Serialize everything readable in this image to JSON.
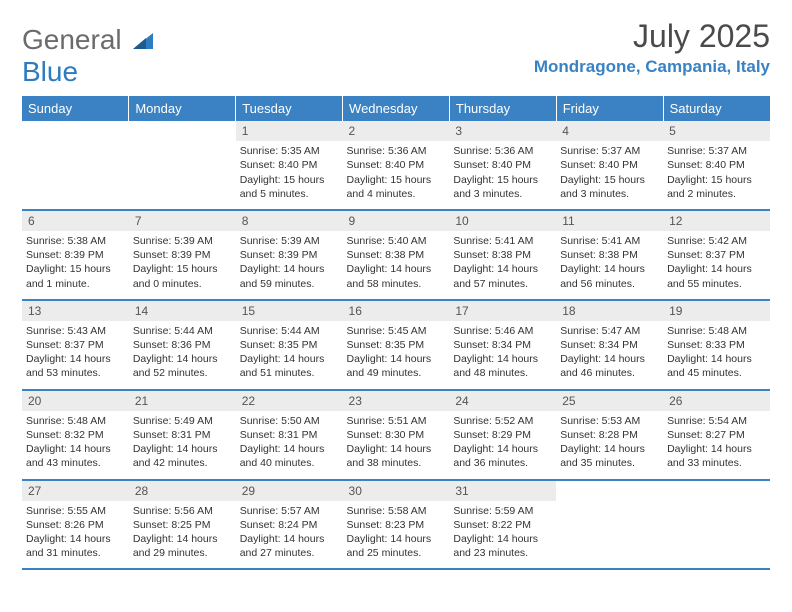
{
  "logo": {
    "line1": "General",
    "line2": "Blue"
  },
  "title": "July 2025",
  "subtitle": "Mondragone, Campania, Italy",
  "colors": {
    "header_bg": "#3a82c4",
    "header_text": "#ffffff",
    "daynum_bg": "#ececec",
    "row_border": "#3a82c4",
    "title_color": "#4a4a4a",
    "subtitle_color": "#3a82c4",
    "body_text": "#333333"
  },
  "weekdays": [
    "Sunday",
    "Monday",
    "Tuesday",
    "Wednesday",
    "Thursday",
    "Friday",
    "Saturday"
  ],
  "weeks": [
    [
      null,
      null,
      {
        "n": "1",
        "sr": "5:35 AM",
        "ss": "8:40 PM",
        "dl": "15 hours and 5 minutes."
      },
      {
        "n": "2",
        "sr": "5:36 AM",
        "ss": "8:40 PM",
        "dl": "15 hours and 4 minutes."
      },
      {
        "n": "3",
        "sr": "5:36 AM",
        "ss": "8:40 PM",
        "dl": "15 hours and 3 minutes."
      },
      {
        "n": "4",
        "sr": "5:37 AM",
        "ss": "8:40 PM",
        "dl": "15 hours and 3 minutes."
      },
      {
        "n": "5",
        "sr": "5:37 AM",
        "ss": "8:40 PM",
        "dl": "15 hours and 2 minutes."
      }
    ],
    [
      {
        "n": "6",
        "sr": "5:38 AM",
        "ss": "8:39 PM",
        "dl": "15 hours and 1 minute."
      },
      {
        "n": "7",
        "sr": "5:39 AM",
        "ss": "8:39 PM",
        "dl": "15 hours and 0 minutes."
      },
      {
        "n": "8",
        "sr": "5:39 AM",
        "ss": "8:39 PM",
        "dl": "14 hours and 59 minutes."
      },
      {
        "n": "9",
        "sr": "5:40 AM",
        "ss": "8:38 PM",
        "dl": "14 hours and 58 minutes."
      },
      {
        "n": "10",
        "sr": "5:41 AM",
        "ss": "8:38 PM",
        "dl": "14 hours and 57 minutes."
      },
      {
        "n": "11",
        "sr": "5:41 AM",
        "ss": "8:38 PM",
        "dl": "14 hours and 56 minutes."
      },
      {
        "n": "12",
        "sr": "5:42 AM",
        "ss": "8:37 PM",
        "dl": "14 hours and 55 minutes."
      }
    ],
    [
      {
        "n": "13",
        "sr": "5:43 AM",
        "ss": "8:37 PM",
        "dl": "14 hours and 53 minutes."
      },
      {
        "n": "14",
        "sr": "5:44 AM",
        "ss": "8:36 PM",
        "dl": "14 hours and 52 minutes."
      },
      {
        "n": "15",
        "sr": "5:44 AM",
        "ss": "8:35 PM",
        "dl": "14 hours and 51 minutes."
      },
      {
        "n": "16",
        "sr": "5:45 AM",
        "ss": "8:35 PM",
        "dl": "14 hours and 49 minutes."
      },
      {
        "n": "17",
        "sr": "5:46 AM",
        "ss": "8:34 PM",
        "dl": "14 hours and 48 minutes."
      },
      {
        "n": "18",
        "sr": "5:47 AM",
        "ss": "8:34 PM",
        "dl": "14 hours and 46 minutes."
      },
      {
        "n": "19",
        "sr": "5:48 AM",
        "ss": "8:33 PM",
        "dl": "14 hours and 45 minutes."
      }
    ],
    [
      {
        "n": "20",
        "sr": "5:48 AM",
        "ss": "8:32 PM",
        "dl": "14 hours and 43 minutes."
      },
      {
        "n": "21",
        "sr": "5:49 AM",
        "ss": "8:31 PM",
        "dl": "14 hours and 42 minutes."
      },
      {
        "n": "22",
        "sr": "5:50 AM",
        "ss": "8:31 PM",
        "dl": "14 hours and 40 minutes."
      },
      {
        "n": "23",
        "sr": "5:51 AM",
        "ss": "8:30 PM",
        "dl": "14 hours and 38 minutes."
      },
      {
        "n": "24",
        "sr": "5:52 AM",
        "ss": "8:29 PM",
        "dl": "14 hours and 36 minutes."
      },
      {
        "n": "25",
        "sr": "5:53 AM",
        "ss": "8:28 PM",
        "dl": "14 hours and 35 minutes."
      },
      {
        "n": "26",
        "sr": "5:54 AM",
        "ss": "8:27 PM",
        "dl": "14 hours and 33 minutes."
      }
    ],
    [
      {
        "n": "27",
        "sr": "5:55 AM",
        "ss": "8:26 PM",
        "dl": "14 hours and 31 minutes."
      },
      {
        "n": "28",
        "sr": "5:56 AM",
        "ss": "8:25 PM",
        "dl": "14 hours and 29 minutes."
      },
      {
        "n": "29",
        "sr": "5:57 AM",
        "ss": "8:24 PM",
        "dl": "14 hours and 27 minutes."
      },
      {
        "n": "30",
        "sr": "5:58 AM",
        "ss": "8:23 PM",
        "dl": "14 hours and 25 minutes."
      },
      {
        "n": "31",
        "sr": "5:59 AM",
        "ss": "8:22 PM",
        "dl": "14 hours and 23 minutes."
      },
      null,
      null
    ]
  ],
  "labels": {
    "sunrise": "Sunrise:",
    "sunset": "Sunset:",
    "daylight": "Daylight:"
  }
}
